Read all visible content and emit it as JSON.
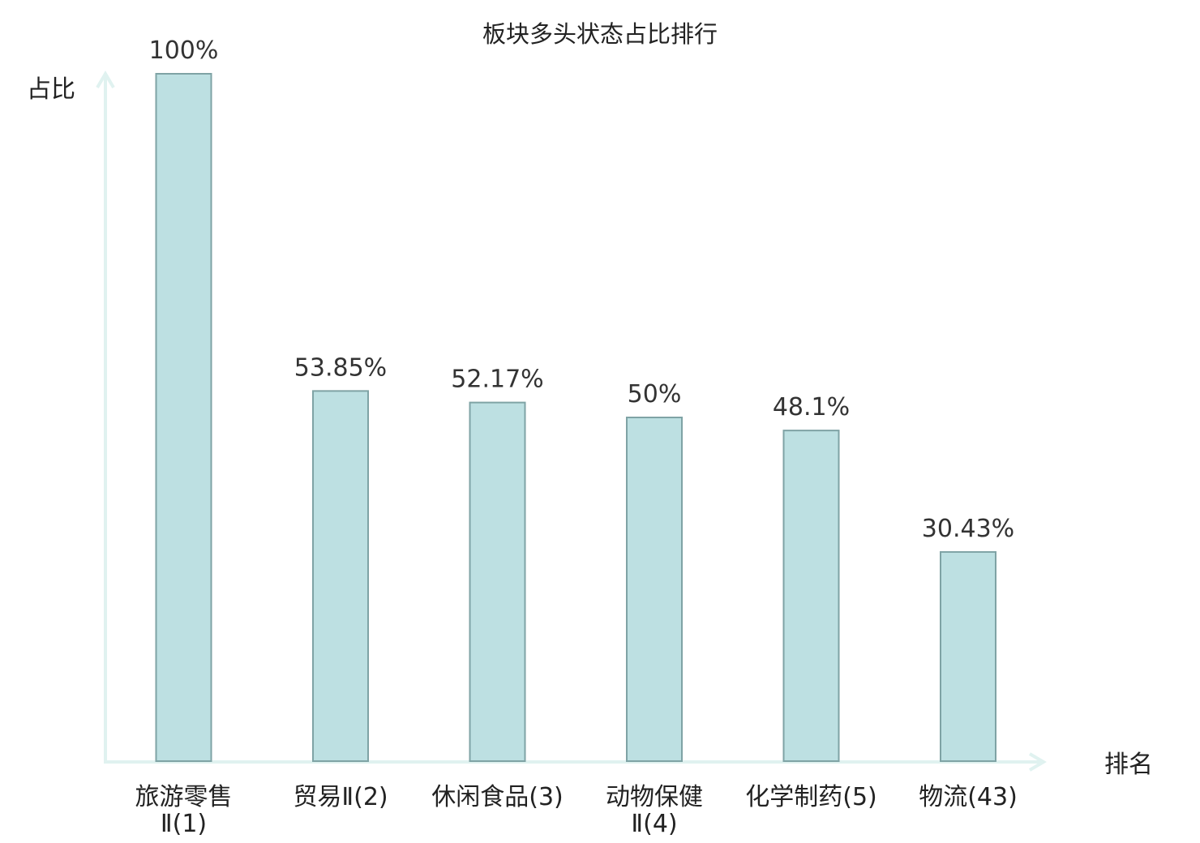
{
  "chart_data": {
    "type": "bar",
    "title": "板块多头状态占比排行",
    "ylabel": "占比",
    "xlabel": "排名",
    "ylim": [
      0,
      100
    ],
    "grid": false,
    "categories": [
      {
        "name_lines": [
          "旅游零售",
          "Ⅱ"
        ],
        "rank": "(1)",
        "label_lines": [
          "旅游零售",
          "Ⅱ(1)"
        ],
        "highlight": false
      },
      {
        "name_lines": [
          "贸易Ⅱ"
        ],
        "rank": "(2)",
        "label_lines": [
          "贸易Ⅱ(2)"
        ],
        "highlight": false
      },
      {
        "name_lines": [
          "休闲食品"
        ],
        "rank": "(3)",
        "label_lines": [
          "休闲食品(3)"
        ],
        "highlight": false
      },
      {
        "name_lines": [
          "动物保健",
          "Ⅱ"
        ],
        "rank": "(4)",
        "label_lines": [
          "动物保健",
          "Ⅱ(4)"
        ],
        "highlight": false
      },
      {
        "name_lines": [
          "化学制药"
        ],
        "rank": "(5)",
        "label_lines": [
          "化学制药(5)"
        ],
        "highlight": false
      },
      {
        "name_lines": [
          "物流"
        ],
        "rank": "(43)",
        "label_lines": [
          "物流(43)"
        ],
        "highlight": true
      }
    ],
    "values": [
      100,
      53.85,
      52.17,
      50,
      48.1,
      30.43
    ],
    "value_labels": [
      "100%",
      "53.85%",
      "52.17%",
      "50%",
      "48.1%",
      "30.43%"
    ],
    "colors": {
      "bar_fill": "#bde0e2",
      "bar_stroke": "#7fa3a5",
      "axis": "#e0f2f0",
      "highlight_text": "#e01010",
      "text": "#222222"
    }
  }
}
